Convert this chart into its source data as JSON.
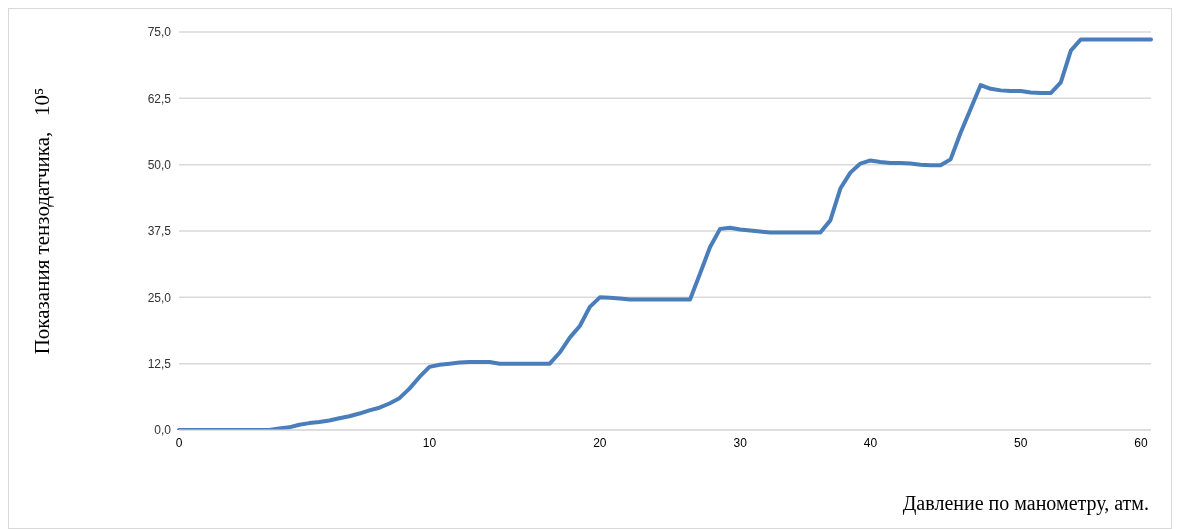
{
  "chart_data": {
    "type": "line",
    "xlabel": "Давление по манометру, атм.",
    "ylabel": "Показания тензодатчика,   10⁵",
    "categories": [
      "0",
      null,
      null,
      null,
      null,
      null,
      null,
      null,
      null,
      null,
      null,
      null,
      null,
      null,
      null,
      null,
      null,
      null,
      null,
      null,
      null,
      null,
      null,
      null,
      null,
      "10",
      null,
      null,
      null,
      null,
      null,
      null,
      null,
      null,
      null,
      null,
      null,
      null,
      null,
      null,
      null,
      null,
      "20",
      null,
      null,
      null,
      null,
      null,
      null,
      null,
      null,
      null,
      null,
      null,
      null,
      null,
      "30",
      null,
      null,
      null,
      null,
      null,
      null,
      null,
      null,
      null,
      null,
      null,
      null,
      "40",
      null,
      null,
      null,
      null,
      null,
      null,
      null,
      null,
      null,
      null,
      null,
      null,
      null,
      null,
      "50",
      null,
      null,
      null,
      null,
      null,
      null,
      null,
      null,
      null,
      null,
      null,
      "60",
      null
    ],
    "series": [
      {
        "color": "#4a7ebb",
        "values": [
          0,
          0,
          0,
          0,
          0,
          0,
          0,
          0,
          0,
          0,
          0.3,
          0.5,
          1.0,
          1.3,
          1.5,
          1.8,
          2.2,
          2.6,
          3.1,
          3.7,
          4.2,
          5.0,
          6.0,
          7.8,
          10.0,
          11.9,
          12.3,
          12.5,
          12.7,
          12.8,
          12.8,
          12.8,
          12.5,
          12.5,
          12.5,
          12.5,
          12.5,
          12.5,
          14.6,
          17.4,
          19.6,
          23.2,
          25.0,
          24.9,
          24.8,
          24.6,
          24.6,
          24.6,
          24.6,
          24.6,
          24.6,
          24.6,
          29.5,
          34.5,
          37.9,
          38.1,
          37.8,
          37.6,
          37.4,
          37.2,
          37.2,
          37.2,
          37.2,
          37.2,
          37.2,
          39.5,
          45.5,
          48.5,
          50.2,
          50.8,
          50.5,
          50.3,
          50.3,
          50.2,
          50.0,
          49.9,
          49.9,
          51.0,
          56.0,
          60.5,
          65.0,
          64.3,
          64.0,
          63.9,
          63.9,
          63.6,
          63.5,
          63.5,
          65.5,
          71.5,
          73.6,
          73.6,
          73.6,
          73.6,
          73.6,
          73.6,
          73.6,
          73.6
        ]
      }
    ],
    "ylim": [
      0,
      75
    ],
    "yticks": [
      {
        "value": 0,
        "label": "0,0"
      },
      {
        "value": 12.5,
        "label": "12,5"
      },
      {
        "value": 25,
        "label": "25,0"
      },
      {
        "value": 37.5,
        "label": "37,5"
      },
      {
        "value": 50,
        "label": "50,0"
      },
      {
        "value": 62.5,
        "label": "62,5"
      },
      {
        "value": 75,
        "label": "75,0"
      }
    ],
    "grid": "y",
    "legend": false,
    "marker": "none",
    "line_style": "solid"
  }
}
